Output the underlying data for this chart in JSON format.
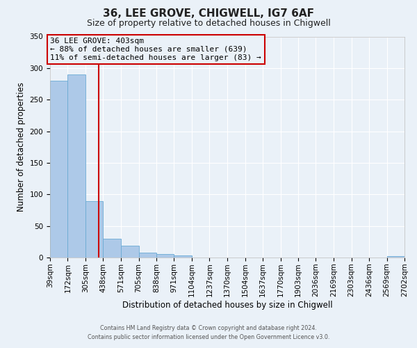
{
  "title": "36, LEE GROVE, CHIGWELL, IG7 6AF",
  "subtitle": "Size of property relative to detached houses in Chigwell",
  "xlabel": "Distribution of detached houses by size in Chigwell",
  "ylabel": "Number of detached properties",
  "bar_edges": [
    39,
    172,
    305,
    438,
    571,
    705,
    838,
    971,
    1104,
    1237,
    1370,
    1504,
    1637,
    1770,
    1903,
    2036,
    2169,
    2303,
    2436,
    2569,
    2702
  ],
  "bar_heights": [
    280,
    290,
    89,
    30,
    19,
    8,
    6,
    3,
    0,
    0,
    0,
    0,
    0,
    0,
    0,
    0,
    0,
    0,
    0,
    2
  ],
  "bar_color": "#adc9e8",
  "bar_edge_color": "#6aaad4",
  "vline_x": 403,
  "vline_color": "#cc0000",
  "ylim": [
    0,
    350
  ],
  "annotation_title": "36 LEE GROVE: 403sqm",
  "annotation_line1": "← 88% of detached houses are smaller (639)",
  "annotation_line2": "11% of semi-detached houses are larger (83) →",
  "annotation_box_color": "#cc0000",
  "background_color": "#eaf1f8",
  "grid_color": "#ffffff",
  "footer1": "Contains HM Land Registry data © Crown copyright and database right 2024.",
  "footer2": "Contains public sector information licensed under the Open Government Licence v3.0.",
  "tick_labels": [
    "39sqm",
    "172sqm",
    "305sqm",
    "438sqm",
    "571sqm",
    "705sqm",
    "838sqm",
    "971sqm",
    "1104sqm",
    "1237sqm",
    "1370sqm",
    "1504sqm",
    "1637sqm",
    "1770sqm",
    "1903sqm",
    "2036sqm",
    "2169sqm",
    "2303sqm",
    "2436sqm",
    "2569sqm",
    "2702sqm"
  ],
  "yticks": [
    0,
    50,
    100,
    150,
    200,
    250,
    300,
    350
  ]
}
